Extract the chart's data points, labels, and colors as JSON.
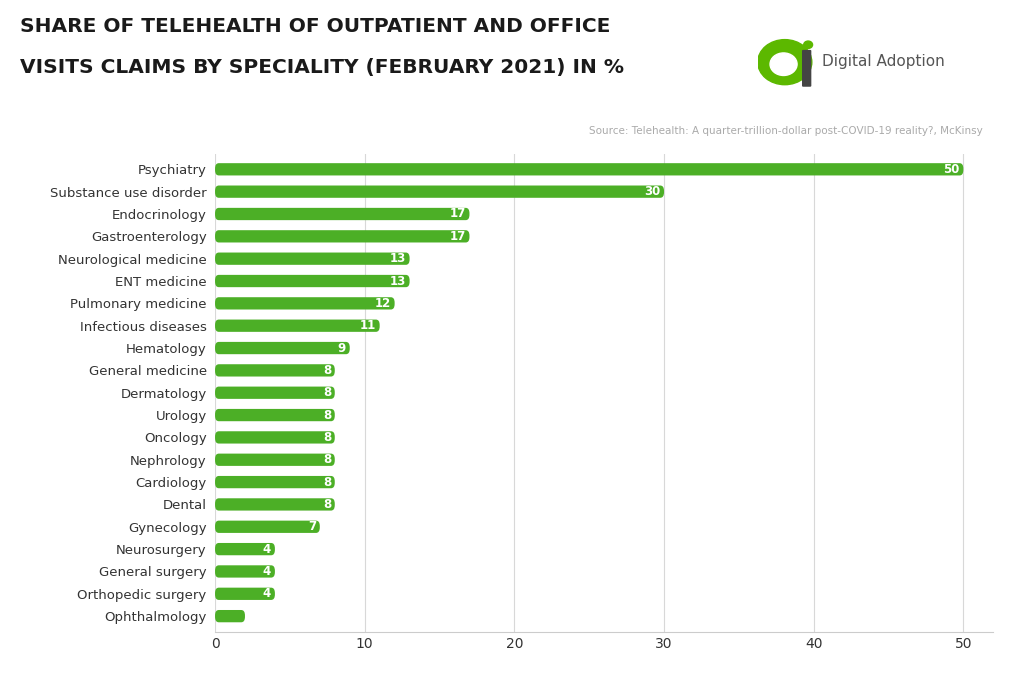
{
  "title_line1": "SHARE OF TELEHEALTH OF OUTPATIENT AND OFFICE",
  "title_line2": "VISITS CLAIMS BY SPECIALITY (FEBRUARY 2021) IN %",
  "source": "Source: Telehealth: A quarter-trillion-dollar post-COVID-19 reality?, McKinsy",
  "categories": [
    "Psychiatry",
    "Substance use disorder",
    "Endocrinology",
    "Gastroenterology",
    "Neurological medicine",
    "ENT medicine",
    "Pulmonary medicine",
    "Infectious diseases",
    "Hematology",
    "General medicine",
    "Dermatology",
    "Urology",
    "Oncology",
    "Nephrology",
    "Cardiology",
    "Dental",
    "Gynecology",
    "Neurosurgery",
    "General surgery",
    "Orthopedic surgery",
    "Ophthalmology"
  ],
  "values": [
    50,
    30,
    17,
    17,
    13,
    13,
    12,
    11,
    9,
    8,
    8,
    8,
    8,
    8,
    8,
    8,
    7,
    4,
    4,
    4,
    2
  ],
  "bar_color": "#4caf26",
  "background_color": "#ffffff",
  "text_color_dark": "#333333",
  "text_color_source": "#aaaaaa",
  "title_color": "#1a1a1a",
  "label_color_inside": "#ffffff",
  "xlim_max": 52,
  "xticks": [
    0,
    10,
    20,
    30,
    40,
    50
  ],
  "brand_color": "#5cb800",
  "logo_text": "Digital Adoption",
  "logo_text_color": "#555555",
  "bar_height": 0.55,
  "label_fontsize": 8.5,
  "ytick_fontsize": 9.5,
  "xtick_fontsize": 10,
  "title_fontsize": 14.5
}
